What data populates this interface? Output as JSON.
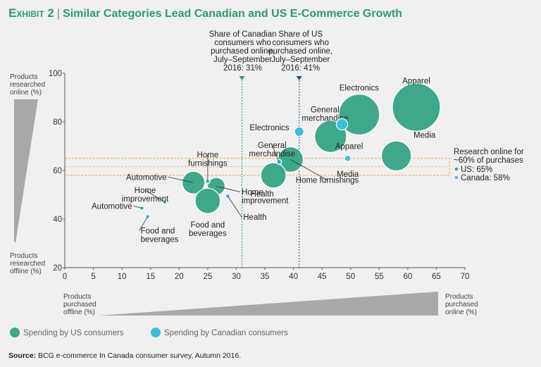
{
  "header": {
    "exhibit": "Exhibit 2",
    "title": "Similar Categories Lead Canadian and US E-Commerce Growth"
  },
  "source": {
    "label": "Source:",
    "text": " BCG e-commerce In Canada consumer survey, Autumn 2016."
  },
  "colors": {
    "us": "#3fa88a",
    "canada": "#3cbfdc",
    "title": "#2e9a6b",
    "research_band": "#e8a444",
    "wedge": "#a8a8a8"
  },
  "chart_data": {
    "type": "scatter",
    "title": "Similar Categories Lead Canadian and US E-Commerce Growth",
    "xlabel_left": [
      "Products",
      "purchased",
      "offline (%)"
    ],
    "xlabel_right": [
      "Products",
      "purchased",
      "online (%)"
    ],
    "ylabel_top": [
      "Products",
      "researched",
      "online (%)"
    ],
    "ylabel_bottom": [
      "Products",
      "researched",
      "offline (%)"
    ],
    "xlim": [
      0,
      70
    ],
    "ylim": [
      20,
      100
    ],
    "xticks": [
      0,
      5,
      10,
      15,
      20,
      25,
      30,
      35,
      40,
      45,
      50,
      55,
      60,
      65,
      70
    ],
    "yticks": [
      20,
      40,
      60,
      80,
      100
    ],
    "reference_lines": [
      {
        "axis": "x",
        "value": 31,
        "label": [
          "Share of Canadian",
          "consumers who",
          "purchased online,",
          "July–September",
          "2016: 31%"
        ],
        "series": "canada"
      },
      {
        "axis": "x",
        "value": 41,
        "label": [
          "Share of US",
          "consumers who",
          "purchased online,",
          "July–September",
          "2016: 41%"
        ],
        "series": "us"
      }
    ],
    "research_band": {
      "y_range": [
        58,
        65
      ],
      "label": [
        "Research online for",
        "~60% of purchases"
      ],
      "items": [
        {
          "series": "us",
          "text": "US: 65%"
        },
        {
          "series": "canada",
          "text": "Canada: 58%"
        }
      ]
    },
    "series": [
      {
        "name": "Spending by US consumers",
        "key": "us",
        "points": [
          {
            "label": [
              "Apparel"
            ],
            "x": 61.5,
            "y": 86,
            "size": 9
          },
          {
            "label": [
              "Electronics"
            ],
            "x": 51.5,
            "y": 83,
            "size": 6.5
          },
          {
            "label": [
              "General",
              "merchandise"
            ],
            "x": 46.5,
            "y": 74,
            "size": 4
          },
          {
            "label": [
              "Media"
            ],
            "x": 58,
            "y": 66,
            "size": 3.5
          },
          {
            "label": [
              "Home furnishings"
            ],
            "x": 39.5,
            "y": 64.5,
            "size": 2.5
          },
          {
            "label": [
              "Health"
            ],
            "x": 36.5,
            "y": 58,
            "size": 2.5
          },
          {
            "label": [
              "Automotive"
            ],
            "x": 22.5,
            "y": 55,
            "size": 2
          },
          {
            "label": [
              "Home",
              "improvement"
            ],
            "x": 26.5,
            "y": 53.5,
            "size": 1.2
          },
          {
            "label": [
              "Food and",
              "beverages"
            ],
            "x": 25,
            "y": 47.5,
            "size": 2.5
          }
        ]
      },
      {
        "name": "Spending by Canadian consumers",
        "key": "canada",
        "points": [
          {
            "label": [
              "Electronics"
            ],
            "x": 41,
            "y": 76,
            "size": 0.35
          },
          {
            "label": [
              "Apparel"
            ],
            "x": 48.5,
            "y": 79,
            "size": 0.5
          },
          {
            "label": [
              "Media"
            ],
            "x": 49.5,
            "y": 65,
            "size": 0.15
          },
          {
            "label": [
              "General",
              "merchandise"
            ],
            "x": 37.5,
            "y": 63.5,
            "size": 0.1
          },
          {
            "label": [
              "Home",
              "furnishings"
            ],
            "x": 25,
            "y": 55.5,
            "size": 0.06
          },
          {
            "label": [
              "Health"
            ],
            "x": 28.5,
            "y": 49.5,
            "size": 0.05
          },
          {
            "label": [
              "Home",
              "improvement"
            ],
            "x": 17.5,
            "y": 47,
            "size": 0.05
          },
          {
            "label": [
              "Automotive"
            ],
            "x": 13.5,
            "y": 44.5,
            "size": 0.05
          },
          {
            "label": [
              "Food and",
              "beverages"
            ],
            "x": 14.5,
            "y": 41,
            "size": 0.05
          }
        ]
      }
    ],
    "legend": [
      {
        "series": "us",
        "text": "Spending by US consumers"
      },
      {
        "series": "canada",
        "text": "Spending by Canadian consumers"
      }
    ]
  }
}
